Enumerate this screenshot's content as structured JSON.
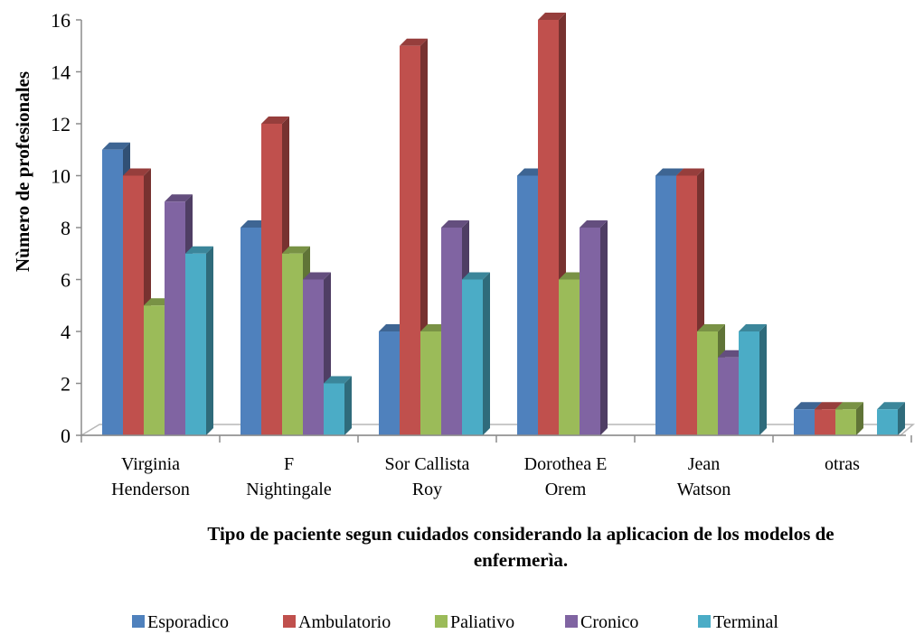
{
  "chart_data": {
    "type": "bar",
    "title": "",
    "ylabel": "Nùmero de profesionales",
    "xlabel_lines": [
      "Tipo de paciente segun cuidados considerando la aplicacion de los modelos de",
      "enfermerìa."
    ],
    "categories": [
      [
        "Virginia",
        "Henderson"
      ],
      [
        "F",
        "Nightingale"
      ],
      [
        "Sor Callista",
        "Roy"
      ],
      [
        "Dorothea E",
        "Orem"
      ],
      [
        "Jean",
        "Watson"
      ],
      [
        "otras"
      ]
    ],
    "ylim": [
      0,
      16
    ],
    "yticks": [
      0,
      2,
      4,
      6,
      8,
      10,
      12,
      14,
      16
    ],
    "grid": false,
    "legend_position": "bottom",
    "series": [
      {
        "name": "Esporadico",
        "color": "#4F81BD",
        "values": [
          11,
          8,
          4,
          10,
          10,
          1
        ]
      },
      {
        "name": "Ambulatorio",
        "color": "#C0504D",
        "values": [
          10,
          12,
          15,
          16,
          10,
          1
        ]
      },
      {
        "name": "Paliativo",
        "color": "#9BBB59",
        "values": [
          5,
          7,
          4,
          6,
          4,
          1
        ]
      },
      {
        "name": "Cronico",
        "color": "#8064A2",
        "values": [
          9,
          6,
          8,
          8,
          3,
          0
        ]
      },
      {
        "name": "Terminal",
        "color": "#4BACC6",
        "values": [
          7,
          2,
          6,
          0,
          4,
          1
        ]
      }
    ]
  }
}
